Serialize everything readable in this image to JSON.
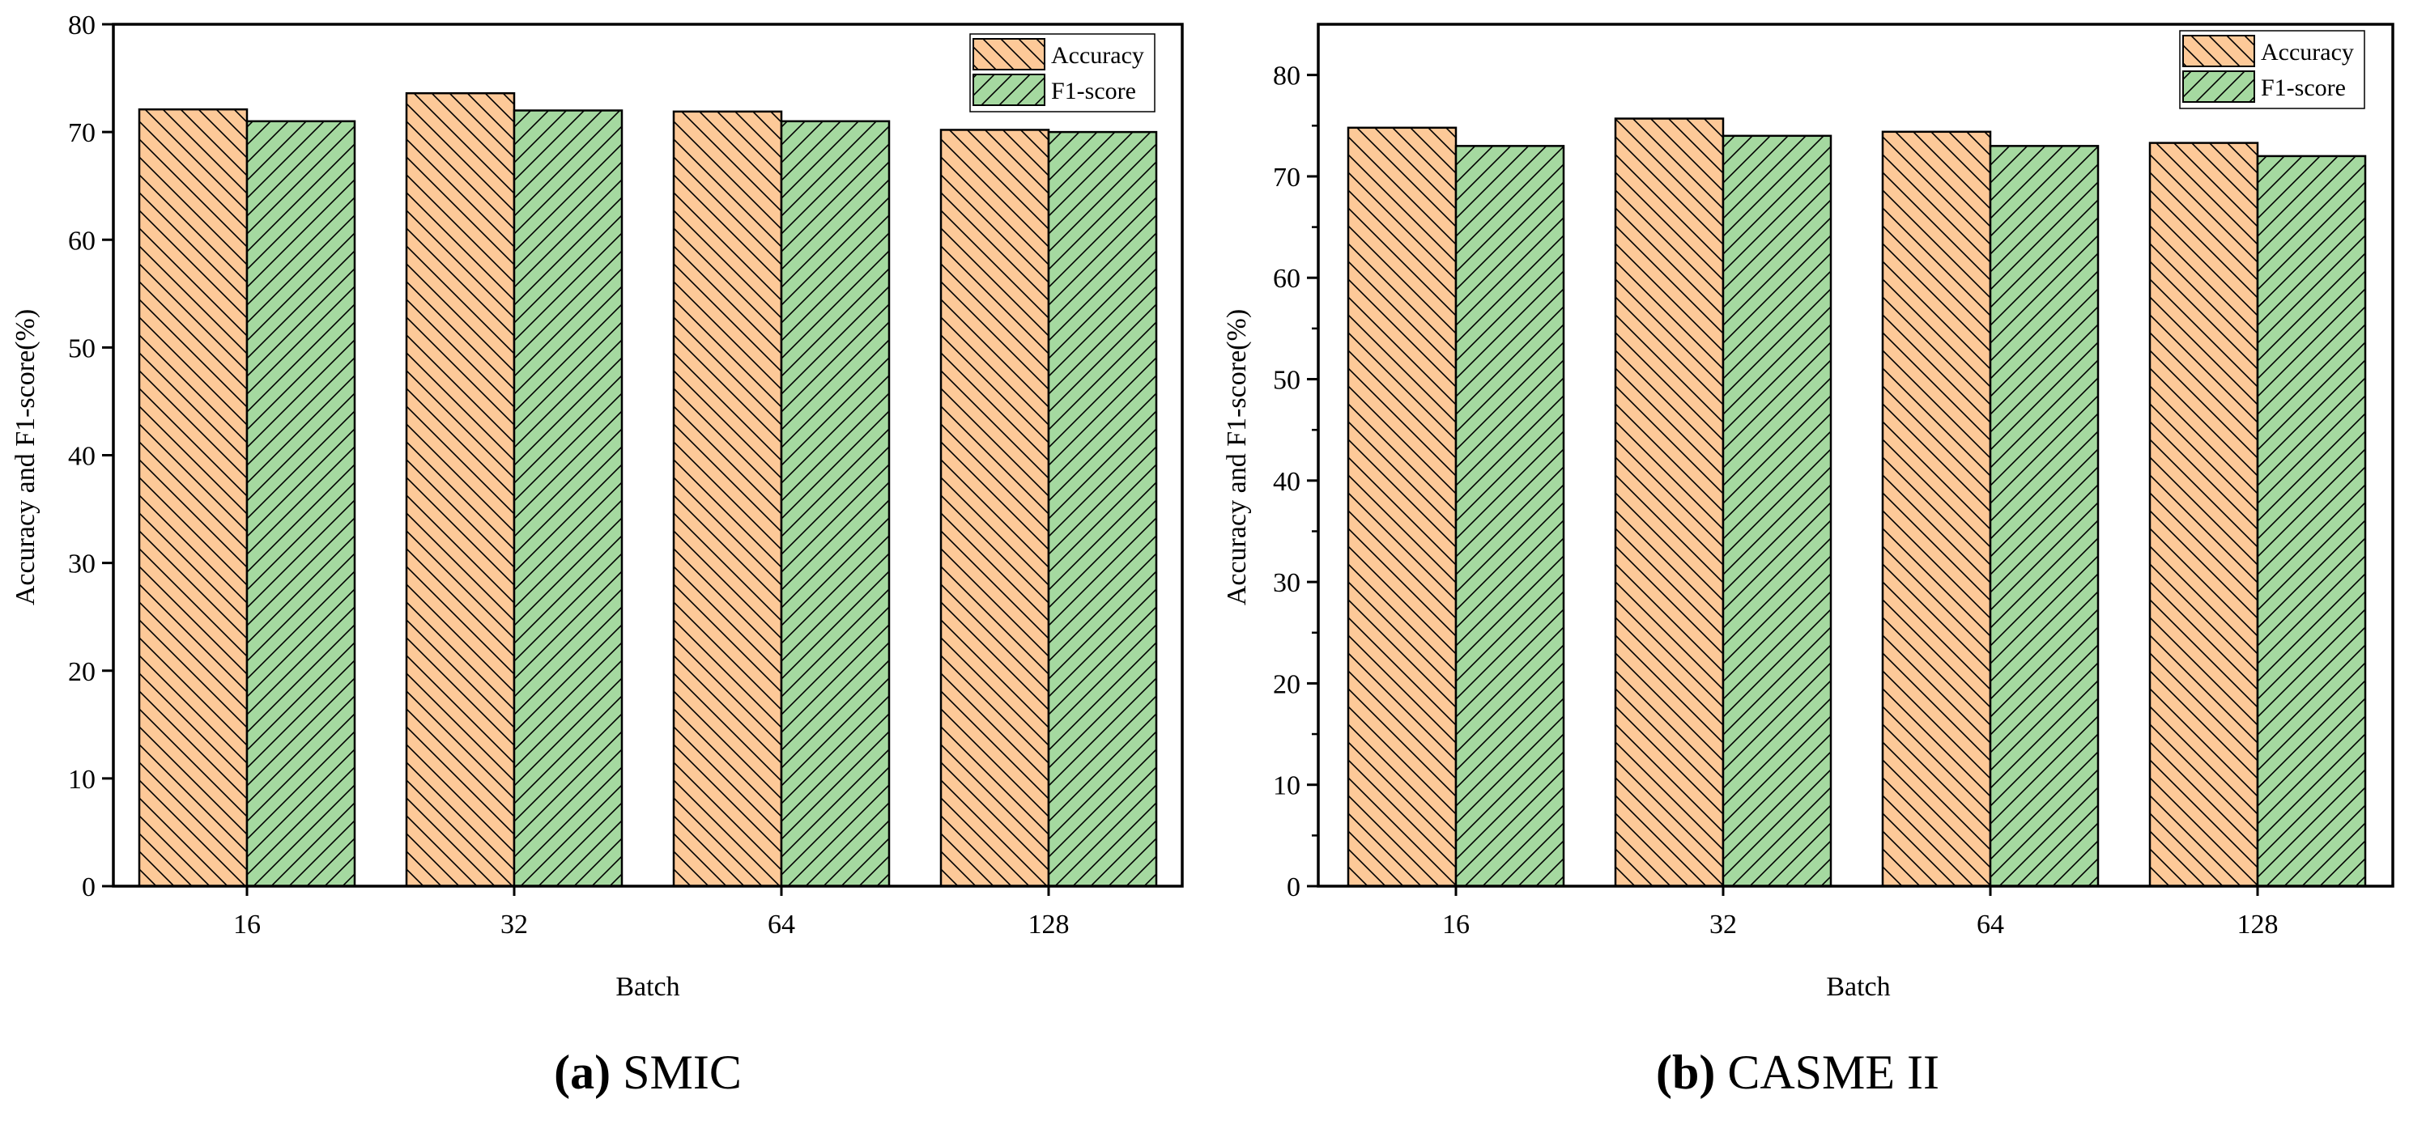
{
  "chart_data": [
    {
      "type": "bar",
      "panel_letter": "(a)",
      "panel_name": "SMIC",
      "categories": [
        "16",
        "32",
        "64",
        "128"
      ],
      "series": [
        {
          "name": "Accuracy",
          "values": [
            72.1,
            73.6,
            71.9,
            70.2
          ]
        },
        {
          "name": "F1-score",
          "values": [
            71.0,
            72.0,
            71.0,
            70.0
          ]
        }
      ],
      "xlabel": "Batch",
      "ylabel": "Accuracy and F1-score(%)",
      "ylim": [
        0,
        80
      ],
      "yticks": [
        0,
        10,
        20,
        30,
        40,
        50,
        60,
        70,
        80
      ],
      "minor_ticks": false,
      "legend": "top-right"
    },
    {
      "type": "bar",
      "panel_letter": "(b)",
      "panel_name": "CASME II",
      "categories": [
        "16",
        "32",
        "64",
        "128"
      ],
      "series": [
        {
          "name": "Accuracy",
          "values": [
            74.8,
            75.7,
            74.4,
            73.3
          ]
        },
        {
          "name": "F1-score",
          "values": [
            73.0,
            74.0,
            73.0,
            72.0
          ]
        }
      ],
      "xlabel": "Batch",
      "ylabel": "Accuracy and F1-score(%)",
      "ylim": [
        0,
        85
      ],
      "yticks": [
        0,
        10,
        20,
        30,
        40,
        50,
        60,
        70,
        80
      ],
      "minor_ticks": true,
      "legend": "top-right"
    }
  ],
  "colors": {
    "accuracy_fill": "#FDC998",
    "f1_fill": "#A5D9A0",
    "stroke": "#000000"
  }
}
